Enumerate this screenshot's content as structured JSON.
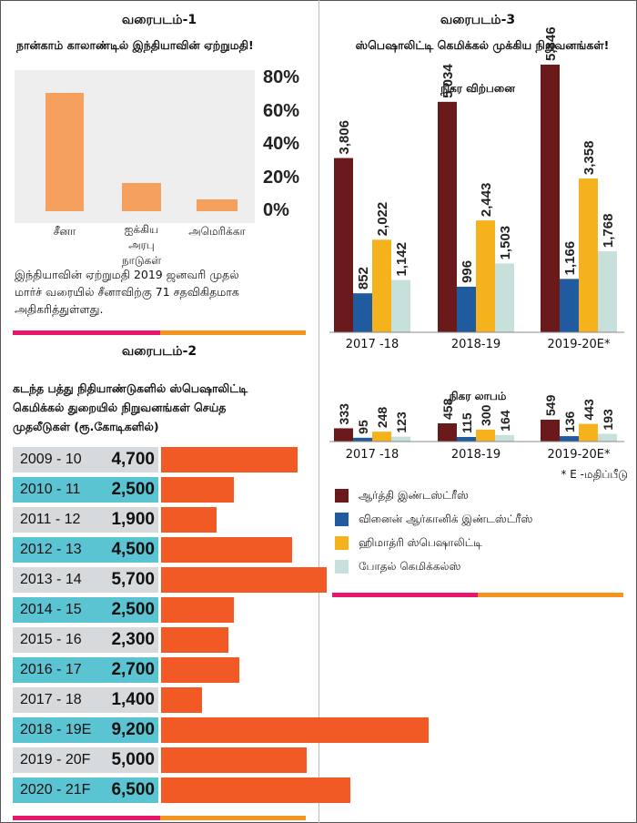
{
  "chart1": {
    "heading": "வரைபடம்-1",
    "title": "நான்காம் காலாண்டில் இந்தியாவின் ஏற்றுமதி!",
    "yticks": [
      "80%",
      "60%",
      "40%",
      "20%",
      "0%"
    ],
    "note": [
      "இந்தியாவின் ஏற்றுமதி 2019 ஜனவரி முதல்",
      "மார்ச் வரையில் சீனாவிற்கு 71 சதவிகிதமாக",
      "அதிகரித்துள்ளது."
    ]
  },
  "chart2": {
    "heading": "வரைபடம்-2",
    "title": [
      "கடந்த பத்து நிதியாண்டுகளில் ஸ்பெஷாலிட்டி",
      "கெமிக்கல் துறையில் நிறுவனங்கள் செய்த",
      "முதலீடுகள் (ரூ.கோடிகளில்)"
    ]
  },
  "chart3": {
    "heading": "வரைபடம்-3",
    "title": "ஸ்பெஷாலிட்டி கெமிக்கல் முக்கிய நிறுவனங்கள்!",
    "footnote": "* E -மதிப்பீடு"
  },
  "chart_data": [
    {
      "type": "bar",
      "title": "நான்காம் காலாண்டில் இந்தியாவின் ஏற்றுமதி!",
      "categories": [
        "சீனா",
        "ஐக்கிய அரபு நாடுகள்",
        "அமெரிக்கா"
      ],
      "values": [
        71,
        17,
        7
      ],
      "ylim": [
        0,
        80
      ],
      "unit": "%",
      "color": "#f5a05c"
    },
    {
      "type": "bar",
      "orientation": "horizontal",
      "title": "கடந்த பத்து நிதியாண்டுகளில் ஸ்பெஷாலிட்டி கெமிக்கல் துறையில் நிறுவனங்கள் செய்த முதலீடுகள் (ரூ.கோடிகளில்)",
      "categories": [
        "2009 - 10",
        "2010 - 11",
        "2011 - 12",
        "2012 - 13",
        "2013 - 14",
        "2014 - 15",
        "2015 - 16",
        "2016 - 17",
        "2017 - 18",
        "2018 - 19E",
        "2019 - 20F",
        "2020 - 21F"
      ],
      "values": [
        4700,
        2500,
        1900,
        4500,
        5700,
        2500,
        2300,
        2700,
        1400,
        9200,
        5000,
        6500
      ],
      "value_labels": [
        "4,700",
        "2,500",
        "1,900",
        "4,500",
        "5,700",
        "2,500",
        "2,300",
        "2,700",
        "1,400",
        "9,200",
        "5,000",
        "6,500"
      ],
      "color": "#f15a24",
      "row_colors": [
        "#d6dadd",
        "#5bc4d2"
      ]
    },
    {
      "type": "bar",
      "title": "நிகர விற்பனை",
      "categories": [
        "2017 -18",
        "2018-19",
        "2019-20E*"
      ],
      "series": [
        {
          "name": "ஆர்த்தி இண்டஸ்ட்ரீஸ்",
          "color": "#6b1a1c",
          "values": [
            3806,
            5034,
            5846
          ],
          "labels": [
            "3,806",
            "5,034",
            "5,846"
          ]
        },
        {
          "name": "வினைன் ஆர்கானிக் இண்டஸ்ட்ரீஸ்",
          "color": "#1f5b9e",
          "values": [
            852,
            996,
            1166
          ],
          "labels": [
            "852",
            "996",
            "1,166"
          ]
        },
        {
          "name": "ஹிமாத்ரி ஸ்பெஷாலிட்டி",
          "color": "#f5b21c",
          "values": [
            2022,
            2443,
            3358
          ],
          "labels": [
            "2,022",
            "2,443",
            "3,358"
          ]
        },
        {
          "name": "போதல் கெமிக்கல்ஸ்",
          "color": "#c7e0db",
          "values": [
            1142,
            1503,
            1768
          ],
          "labels": [
            "1,142",
            "1,503",
            "1,768"
          ]
        }
      ]
    },
    {
      "type": "bar",
      "title": "நிகர லாபம்",
      "categories": [
        "2017 -18",
        "2018-19",
        "2019-20E*"
      ],
      "series": [
        {
          "name": "ஆர்த்தி இண்டஸ்ட்ரீஸ்",
          "values": [
            333,
            458,
            549
          ],
          "labels": [
            "333",
            "458",
            "549"
          ]
        },
        {
          "name": "வினைன் ஆர்கானிக் இண்டஸ்ட்ரீஸ்",
          "values": [
            95,
            115,
            136
          ],
          "labels": [
            "95",
            "115",
            "136"
          ]
        },
        {
          "name": "ஹிமாத்ரி ஸ்பெஷாலிட்டி",
          "values": [
            248,
            300,
            443
          ],
          "labels": [
            "248",
            "300",
            "443"
          ]
        },
        {
          "name": "போதல் கெமிக்கல்ஸ்",
          "values": [
            123,
            164,
            193
          ],
          "labels": [
            "123",
            "164",
            "193"
          ]
        }
      ]
    }
  ]
}
